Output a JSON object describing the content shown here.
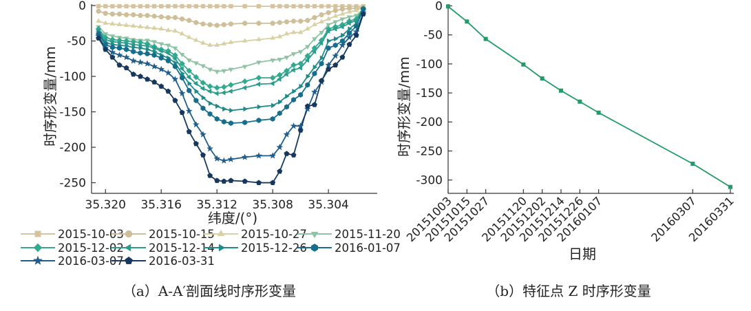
{
  "chart_data": [
    {
      "type": "line",
      "panel": "a",
      "caption": "（a）A-A′剖面线时序形变量",
      "xlabel": "纬度/(°)",
      "ylabel": "时序形变量/mm",
      "xlim": [
        35.321,
        35.3005
      ],
      "ylim": [
        -265,
        2
      ],
      "xticks": [
        35.32,
        35.316,
        35.312,
        35.308,
        35.304
      ],
      "xtick_labels": [
        "35.320",
        "35.316",
        "35.312",
        "35.308",
        "35.304"
      ],
      "yticks": [
        0,
        -50,
        -100,
        -150,
        -200,
        -250
      ],
      "ytick_labels": [
        "0",
        "-50",
        "-100",
        "-150",
        "-200",
        "-250"
      ],
      "x": [
        35.3205,
        35.32,
        35.3195,
        35.319,
        35.3185,
        35.318,
        35.3175,
        35.317,
        35.3165,
        35.316,
        35.3155,
        35.315,
        35.3145,
        35.314,
        35.3135,
        35.313,
        35.3125,
        35.312,
        35.3115,
        35.311,
        35.31,
        35.309,
        35.308,
        35.3075,
        35.307,
        35.3065,
        35.306,
        35.3055,
        35.305,
        35.3045,
        35.304,
        35.3035,
        35.303,
        35.3025,
        35.302,
        35.3015
      ],
      "series": [
        {
          "name": "2015-10-03",
          "color": "#d6c49f",
          "marker": "square",
          "values": [
            -1,
            -1,
            -1,
            -1,
            -1,
            -1,
            -1,
            -1,
            -1,
            -1,
            -1,
            -1,
            -1,
            -1,
            -1,
            -1,
            -1,
            -1,
            -1,
            -1,
            -1,
            -1,
            -1,
            -1,
            -1,
            -1,
            -1,
            -1,
            -1,
            -1,
            -1,
            -1,
            -1,
            -1,
            -1,
            -1
          ]
        },
        {
          "name": "2015-10-15",
          "color": "#cfbf98",
          "marker": "circle",
          "values": [
            -8,
            -11,
            -12,
            -12,
            -13,
            -13,
            -14,
            -14,
            -15,
            -16,
            -17,
            -17,
            -19,
            -21,
            -24,
            -26,
            -27,
            -28,
            -27,
            -26,
            -25,
            -25,
            -25,
            -24,
            -23,
            -22,
            -22,
            -21,
            -17,
            -13,
            -10,
            -7,
            -5,
            -4,
            -4,
            -2
          ]
        },
        {
          "name": "2015-10-27",
          "color": "#d9d0a3",
          "marker": "triangle-up",
          "values": [
            -22,
            -25,
            -26,
            -27,
            -28,
            -29,
            -30,
            -31,
            -32,
            -33,
            -35,
            -36,
            -40,
            -45,
            -49,
            -53,
            -56,
            -56,
            -54,
            -52,
            -50,
            -48,
            -46,
            -44,
            -40,
            -38,
            -38,
            -33,
            -27,
            -23,
            -19,
            -15,
            -12,
            -9,
            -7,
            -3
          ]
        },
        {
          "name": "2015-11-20",
          "color": "#8fc3a3",
          "marker": "triangle-down",
          "values": [
            -30,
            -40,
            -43,
            -45,
            -46,
            -48,
            -49,
            -49,
            -51,
            -54,
            -56,
            -60,
            -69,
            -77,
            -81,
            -85,
            -90,
            -93,
            -92,
            -90,
            -86,
            -80,
            -77,
            -76,
            -73,
            -68,
            -65,
            -58,
            -47,
            -38,
            -27,
            -23,
            -19,
            -16,
            -14,
            -5
          ]
        },
        {
          "name": "2015-12-02",
          "color": "#33aa8f",
          "marker": "diamond",
          "values": [
            -33,
            -45,
            -48,
            -49,
            -50,
            -51,
            -52,
            -54,
            -58,
            -62,
            -64,
            -70,
            -82,
            -92,
            -101,
            -109,
            -114,
            -116,
            -115,
            -112,
            -107,
            -102,
            -102,
            -98,
            -92,
            -84,
            -82,
            -71,
            -60,
            -49,
            -33,
            -30,
            -27,
            -22,
            -19,
            -4
          ]
        },
        {
          "name": "2015-12-14",
          "color": "#2a9c8c",
          "marker": "tri-left",
          "values": [
            -36,
            -48,
            -51,
            -52,
            -53,
            -55,
            -56,
            -57,
            -60,
            -64,
            -67,
            -75,
            -89,
            -101,
            -110,
            -117,
            -121,
            -124,
            -123,
            -121,
            -116,
            -111,
            -110,
            -104,
            -97,
            -91,
            -88,
            -77,
            -65,
            -53,
            -36,
            -33,
            -30,
            -25,
            -21,
            -5
          ]
        },
        {
          "name": "2015-12-26",
          "color": "#1f8a8a",
          "marker": "tri-right",
          "values": [
            -38,
            -52,
            -55,
            -56,
            -57,
            -59,
            -60,
            -62,
            -65,
            -70,
            -74,
            -81,
            -96,
            -110,
            -121,
            -130,
            -138,
            -142,
            -146,
            -148,
            -146,
            -143,
            -141,
            -136,
            -128,
            -121,
            -114,
            -100,
            -87,
            -74,
            -50,
            -47,
            -42,
            -33,
            -25,
            -5
          ]
        },
        {
          "name": "2016-01-07",
          "color": "#166e8c",
          "marker": "hexagon",
          "values": [
            -40,
            -55,
            -59,
            -60,
            -62,
            -65,
            -67,
            -68,
            -70,
            -74,
            -78,
            -86,
            -102,
            -120,
            -134,
            -145,
            -153,
            -160,
            -164,
            -166,
            -165,
            -162,
            -160,
            -152,
            -143,
            -133,
            -126,
            -112,
            -96,
            -82,
            -60,
            -56,
            -50,
            -39,
            -29,
            -5
          ]
        },
        {
          "name": "2016-03-07",
          "color": "#1f5d8c",
          "marker": "star",
          "values": [
            -43,
            -60,
            -66,
            -70,
            -73,
            -78,
            -80,
            -82,
            -86,
            -90,
            -95,
            -104,
            -124,
            -149,
            -168,
            -182,
            -202,
            -216,
            -219,
            -217,
            -214,
            -212,
            -212,
            -200,
            -182,
            -170,
            -170,
            -146,
            -122,
            -108,
            -84,
            -71,
            -56,
            -45,
            -37,
            -10
          ]
        },
        {
          "name": "2016-03-31",
          "color": "#16385e",
          "marker": "pentagon",
          "values": [
            -46,
            -62,
            -73,
            -84,
            -88,
            -97,
            -100,
            -104,
            -108,
            -114,
            -121,
            -134,
            -151,
            -178,
            -195,
            -211,
            -240,
            -247,
            -248,
            -247,
            -248,
            -250,
            -250,
            -234,
            -209,
            -211,
            -176,
            -142,
            -140,
            -106,
            -90,
            -84,
            -73,
            -55,
            -42,
            -12
          ]
        }
      ]
    },
    {
      "type": "line",
      "panel": "b",
      "caption": "（b）特征点 Z 时序形变量",
      "xlabel": "日期",
      "ylabel": "时序形变量/mm",
      "color": "#219b67",
      "ylim": [
        -323,
        3
      ],
      "yticks": [
        0,
        -50,
        -100,
        -150,
        -200,
        -250,
        -300
      ],
      "ytick_labels": [
        "0",
        "-50",
        "-100",
        "-150",
        "-200",
        "-250",
        "-300"
      ],
      "day_offsets": [
        0,
        12,
        24,
        48,
        60,
        72,
        84,
        96,
        156,
        180
      ],
      "x_labels": [
        "20151003",
        "20151015",
        "20151027",
        "20151120",
        "20151202",
        "20151214",
        "20151226",
        "20160107",
        "20160307",
        "20160331"
      ],
      "values": [
        -1,
        -27,
        -57,
        -101,
        -125,
        -146,
        -165,
        -184,
        -272,
        -312
      ]
    }
  ]
}
